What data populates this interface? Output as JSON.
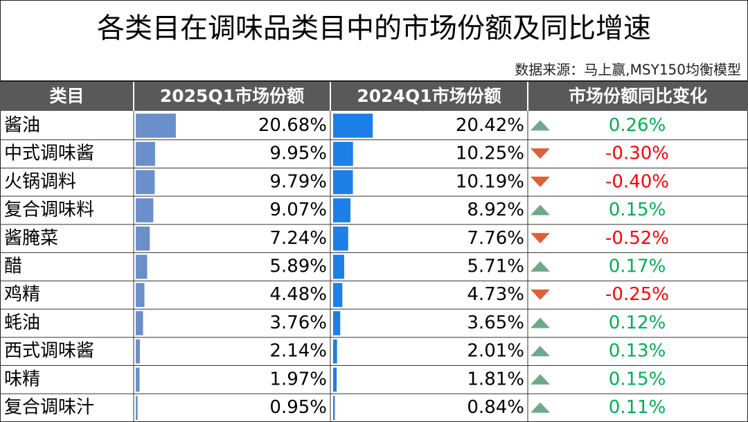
{
  "title": "各类目在调味品类目中的市场份额及同比增速",
  "source": "数据来源：马上赢,MSY150均衡模型",
  "table": {
    "header": [
      "类目",
      "2025Q1市场份额",
      "2024Q1市场份额",
      "市场份额同比变化"
    ],
    "rows": [
      {
        "name": "酱油",
        "share_2025": {
          "value": 20.68,
          "label": "20.68%"
        },
        "share_2024": {
          "value": 20.42,
          "label": "20.42%"
        },
        "change": {
          "value": 0.26,
          "label": "0.26%"
        }
      },
      {
        "name": "中式调味酱",
        "share_2025": {
          "value": 9.95,
          "label": "9.95%"
        },
        "share_2024": {
          "value": 10.25,
          "label": "10.25%"
        },
        "change": {
          "value": -0.3,
          "label": "-0.30%"
        }
      },
      {
        "name": "火锅调料",
        "share_2025": {
          "value": 9.79,
          "label": "9.79%"
        },
        "share_2024": {
          "value": 10.19,
          "label": "10.19%"
        },
        "change": {
          "value": -0.4,
          "label": "-0.40%"
        }
      },
      {
        "name": "复合调味料",
        "share_2025": {
          "value": 9.07,
          "label": "9.07%"
        },
        "share_2024": {
          "value": 8.92,
          "label": "8.92%"
        },
        "change": {
          "value": 0.15,
          "label": "0.15%"
        }
      },
      {
        "name": "酱腌菜",
        "share_2025": {
          "value": 7.24,
          "label": "7.24%"
        },
        "share_2024": {
          "value": 7.76,
          "label": "7.76%"
        },
        "change": {
          "value": -0.52,
          "label": "-0.52%"
        }
      },
      {
        "name": "醋",
        "share_2025": {
          "value": 5.89,
          "label": "5.89%"
        },
        "share_2024": {
          "value": 5.71,
          "label": "5.71%"
        },
        "change": {
          "value": 0.17,
          "label": "0.17%"
        }
      },
      {
        "name": "鸡精",
        "share_2025": {
          "value": 4.48,
          "label": "4.48%"
        },
        "share_2024": {
          "value": 4.73,
          "label": "4.73%"
        },
        "change": {
          "value": -0.25,
          "label": "-0.25%"
        }
      },
      {
        "name": "蚝油",
        "share_2025": {
          "value": 3.76,
          "label": "3.76%"
        },
        "share_2024": {
          "value": 3.65,
          "label": "3.65%"
        },
        "change": {
          "value": 0.12,
          "label": "0.12%"
        }
      },
      {
        "name": "西式调味酱",
        "share_2025": {
          "value": 2.14,
          "label": "2.14%"
        },
        "share_2024": {
          "value": 2.01,
          "label": "2.01%"
        },
        "change": {
          "value": 0.13,
          "label": "0.13%"
        }
      },
      {
        "name": "味精",
        "share_2025": {
          "value": 1.97,
          "label": "1.97%"
        },
        "share_2024": {
          "value": 1.81,
          "label": "1.81%"
        },
        "change": {
          "value": 0.15,
          "label": "0.15%"
        }
      },
      {
        "name": "复合调味汁",
        "share_2025": {
          "value": 0.95,
          "label": "0.95%"
        },
        "share_2024": {
          "value": 0.84,
          "label": "0.84%"
        },
        "change": {
          "value": 0.11,
          "label": "0.11%"
        }
      }
    ]
  },
  "colors": {
    "bar_2025": "#6a8fcb",
    "bar_2024": "#1d7fe8",
    "up_text": "#00b050",
    "down_text": "#ff0000",
    "up_arrow": "#6ea98a",
    "down_arrow": "#df5f38"
  }
}
